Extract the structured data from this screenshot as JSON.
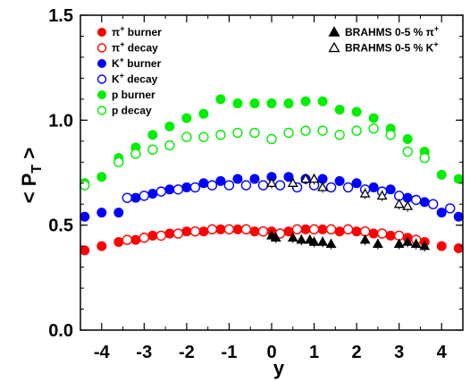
{
  "chart_data": {
    "type": "scatter",
    "xlabel": "y",
    "ylabel": "< P",
    "ylabel_sub": "T",
    "ylabel_tail": " >",
    "xlim": [
      -4.5,
      4.5
    ],
    "ylim": [
      0.0,
      1.5
    ],
    "xticks": [
      "-4",
      "-3",
      "-2",
      "-1",
      "0",
      "1",
      "2",
      "3",
      "4"
    ],
    "yticks": [
      "0.0",
      "0.5",
      "1.0",
      "1.5"
    ],
    "grid": false,
    "legend_left": {
      "placement": "top-left"
    },
    "legend_right": {
      "placement": "top-right"
    },
    "colors": {
      "pi": "#ff0000",
      "k": "#0000ff",
      "p": "#00ee00",
      "brahms": "#000000"
    },
    "series": [
      {
        "name": "π",
        "sup": "+",
        "rest": " burner",
        "color": "#ff0000",
        "filled": true,
        "marker": "circle",
        "x": [
          -4.4,
          -4.0,
          -3.6,
          -3.2,
          -2.8,
          -2.4,
          -2.0,
          -1.6,
          -1.2,
          -0.8,
          -0.4,
          0.0,
          0.4,
          0.8,
          1.2,
          1.6,
          2.0,
          2.4,
          2.8,
          3.2,
          3.6,
          4.0,
          4.4
        ],
        "y": [
          0.38,
          0.4,
          0.42,
          0.43,
          0.45,
          0.46,
          0.47,
          0.47,
          0.48,
          0.48,
          0.47,
          0.47,
          0.47,
          0.48,
          0.48,
          0.47,
          0.47,
          0.46,
          0.45,
          0.44,
          0.42,
          0.4,
          0.39
        ]
      },
      {
        "name": "π",
        "sup": "+",
        "rest": " decay",
        "color": "#ff0000",
        "filled": false,
        "marker": "circle",
        "x": [
          -3.4,
          -3.0,
          -2.6,
          -2.2,
          -1.8,
          -1.4,
          -1.0,
          -0.6,
          -0.2,
          0.2,
          0.6,
          1.0,
          1.4,
          1.8,
          2.2,
          2.6,
          3.0,
          3.4
        ],
        "y": [
          0.43,
          0.44,
          0.45,
          0.46,
          0.47,
          0.48,
          0.48,
          0.48,
          0.47,
          0.46,
          0.48,
          0.48,
          0.48,
          0.48,
          0.47,
          0.46,
          0.45,
          0.43
        ]
      },
      {
        "name": "K",
        "sup": "+",
        "rest": " burner",
        "color": "#0000ff",
        "filled": true,
        "marker": "circle",
        "x": [
          -4.4,
          -4.0,
          -3.6,
          -3.2,
          -2.8,
          -2.4,
          -2.0,
          -1.6,
          -1.2,
          -0.8,
          -0.4,
          0.0,
          0.4,
          0.8,
          1.2,
          1.6,
          2.0,
          2.4,
          2.8,
          3.2,
          3.6,
          4.0,
          4.4
        ],
        "y": [
          0.54,
          0.56,
          0.56,
          0.63,
          0.65,
          0.67,
          0.68,
          0.7,
          0.71,
          0.72,
          0.72,
          0.73,
          0.73,
          0.72,
          0.72,
          0.71,
          0.7,
          0.68,
          0.67,
          0.63,
          0.61,
          0.56,
          0.54
        ]
      },
      {
        "name": "K",
        "sup": "+",
        "rest": " decay",
        "color": "#0000ff",
        "filled": false,
        "marker": "circle",
        "x": [
          -3.4,
          -3.0,
          -2.6,
          -2.2,
          -1.8,
          -1.4,
          -1.0,
          -0.6,
          -0.2,
          0.2,
          0.6,
          1.0,
          1.4,
          1.8,
          2.2,
          2.6,
          3.0,
          3.4,
          3.8,
          4.2
        ],
        "y": [
          0.63,
          0.64,
          0.66,
          0.67,
          0.68,
          0.69,
          0.69,
          0.69,
          0.69,
          0.69,
          0.68,
          0.69,
          0.68,
          0.68,
          0.67,
          0.66,
          0.64,
          0.62,
          0.6,
          0.58
        ]
      },
      {
        "name": "p",
        "sup": "",
        "rest": " burner",
        "color": "#00ee00",
        "filled": true,
        "marker": "circle",
        "x": [
          -4.4,
          -4.0,
          -3.6,
          -3.2,
          -2.8,
          -2.4,
          -2.0,
          -1.6,
          -1.2,
          -0.8,
          -0.4,
          0.0,
          0.4,
          0.8,
          1.2,
          1.6,
          2.0,
          2.4,
          2.8,
          3.2,
          3.6,
          4.0,
          4.4
        ],
        "y": [
          0.7,
          0.73,
          0.82,
          0.87,
          0.93,
          0.97,
          1.01,
          1.03,
          1.1,
          1.08,
          1.08,
          1.08,
          1.08,
          1.09,
          1.09,
          1.05,
          1.04,
          1.01,
          0.96,
          0.91,
          0.85,
          0.74,
          0.72
        ]
      },
      {
        "name": "p",
        "sup": "",
        "rest": " decay",
        "color": "#00ee00",
        "filled": false,
        "marker": "circle",
        "x": [
          -4.4,
          -3.6,
          -3.2,
          -2.8,
          -2.4,
          -2.0,
          -1.6,
          -1.2,
          -0.8,
          -0.4,
          0.0,
          0.4,
          0.8,
          1.2,
          1.6,
          2.0,
          2.4,
          2.8,
          3.2,
          3.6
        ],
        "y": [
          0.69,
          0.8,
          0.84,
          0.86,
          0.88,
          0.92,
          0.92,
          0.93,
          0.94,
          0.94,
          0.91,
          0.94,
          0.95,
          0.95,
          0.93,
          0.95,
          0.96,
          0.93,
          0.85,
          0.82
        ]
      },
      {
        "name": "BRAHMS 0-5 % π",
        "sup": "+",
        "rest": "",
        "color": "#000000",
        "filled": true,
        "marker": "triangle",
        "x": [
          0.0,
          0.1,
          0.5,
          0.7,
          0.9,
          1.0,
          1.2,
          1.4,
          2.2,
          2.5,
          3.0,
          3.2,
          3.4,
          3.6
        ],
        "y": [
          0.45,
          0.44,
          0.44,
          0.43,
          0.43,
          0.42,
          0.42,
          0.41,
          0.43,
          0.41,
          0.41,
          0.42,
          0.41,
          0.4
        ]
      },
      {
        "name": "BRAHMS 0-5 % K",
        "sup": "+",
        "rest": "",
        "color": "#000000",
        "filled": false,
        "marker": "triangle",
        "x": [
          0.0,
          0.5,
          0.8,
          1.0,
          1.2,
          2.2,
          2.6,
          3.0,
          3.2
        ],
        "y": [
          0.7,
          0.7,
          0.72,
          0.72,
          0.68,
          0.65,
          0.64,
          0.6,
          0.59
        ]
      }
    ]
  }
}
